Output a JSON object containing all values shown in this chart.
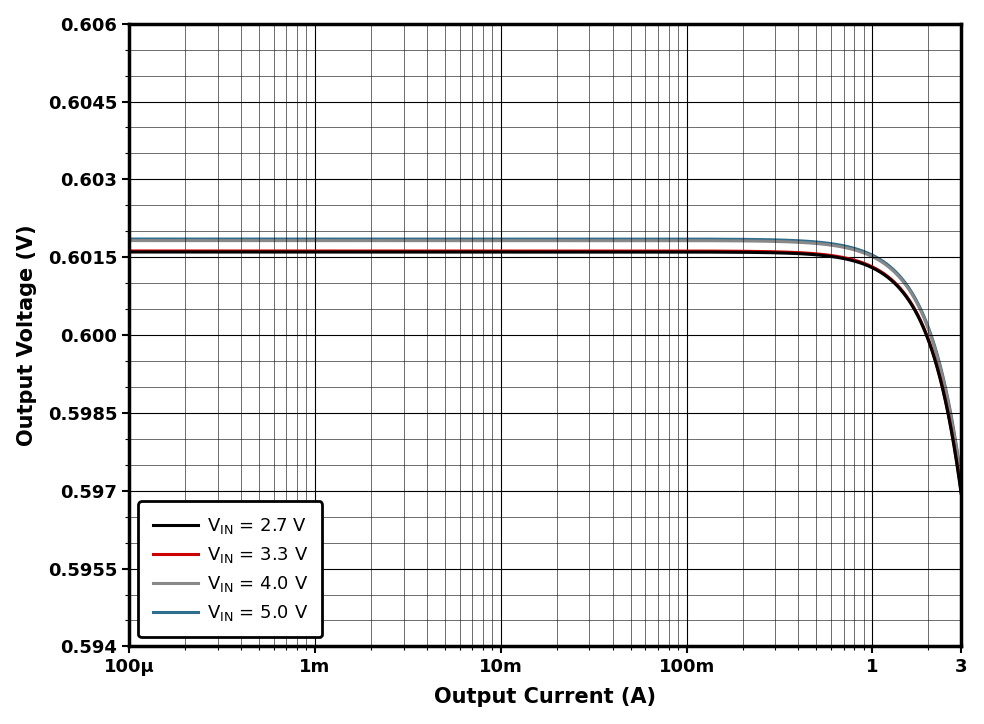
{
  "xlabel": "Output Current (A)",
  "ylabel": "Output Voltage (V)",
  "xmin": 0.0001,
  "xmax": 3,
  "ymin": 0.594,
  "ymax": 0.606,
  "yticks": [
    0.594,
    0.5955,
    0.597,
    0.5985,
    0.6,
    0.6015,
    0.603,
    0.6045,
    0.606
  ],
  "xtick_labels": [
    "100μ",
    "1m",
    "10m",
    "100m",
    "1",
    "3"
  ],
  "xtick_positions": [
    0.0001,
    0.001,
    0.01,
    0.1,
    1,
    3
  ],
  "lines": [
    {
      "color": "#000000",
      "lw": 2.2,
      "label": "V",
      "label_sub": "IN",
      "label_val": " = 2.7 V",
      "flat": 0.6016,
      "r_eff": 0.018,
      "i_knee": 0.055
    },
    {
      "color": "#cc0000",
      "lw": 2.2,
      "label": "V",
      "label_sub": "IN",
      "label_val": " = 3.3 V",
      "flat": 0.6016,
      "r_eff": 0.017,
      "i_knee": 0.06
    },
    {
      "color": "#888888",
      "lw": 2.2,
      "label": "V",
      "label_sub": "IN",
      "label_val": " = 4.0 V",
      "flat": 0.60182,
      "r_eff": 0.016,
      "i_knee": 0.065
    },
    {
      "color": "#2e6e8e",
      "lw": 2.2,
      "label": "V",
      "label_sub": "IN",
      "label_val": " = 5.0 V",
      "flat": 0.60185,
      "r_eff": 0.0155,
      "i_knee": 0.07
    }
  ],
  "background_color": "#ffffff",
  "grid_color": "#000000",
  "legend_loc": "lower left"
}
